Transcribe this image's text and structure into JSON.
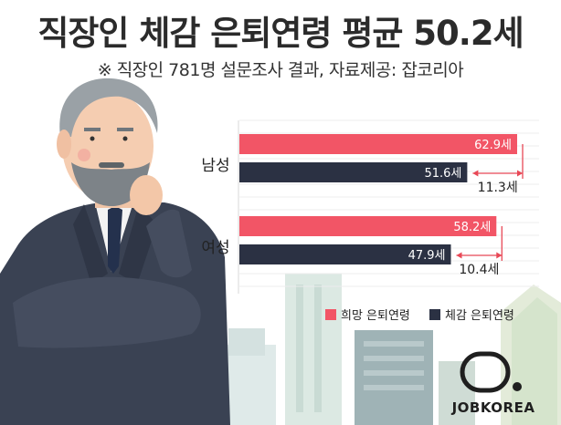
{
  "title": "직장인 체감 은퇴연령 평균 50.2세",
  "subtitle": "※ 직장인 781명 설문조사 결과,  자료제공: 잡코리아",
  "brand": "JOBKOREA",
  "colors": {
    "hope": "#f25566",
    "perceived": "#2b3143",
    "diff": "#e84856"
  },
  "chart_data": {
    "type": "bar",
    "orientation": "horizontal",
    "categories": [
      "남성",
      "여성"
    ],
    "series": [
      {
        "name": "희망 은퇴연령",
        "values": [
          62.9,
          58.2
        ],
        "labels": [
          "62.9세",
          "58.2세"
        ]
      },
      {
        "name": "체감 은퇴연령",
        "values": [
          51.6,
          47.9
        ],
        "labels": [
          "51.6세",
          "47.9세"
        ]
      }
    ],
    "differences": [
      "11.3세",
      "10.4세"
    ],
    "legend_position": "bottom-right",
    "grid": true
  }
}
